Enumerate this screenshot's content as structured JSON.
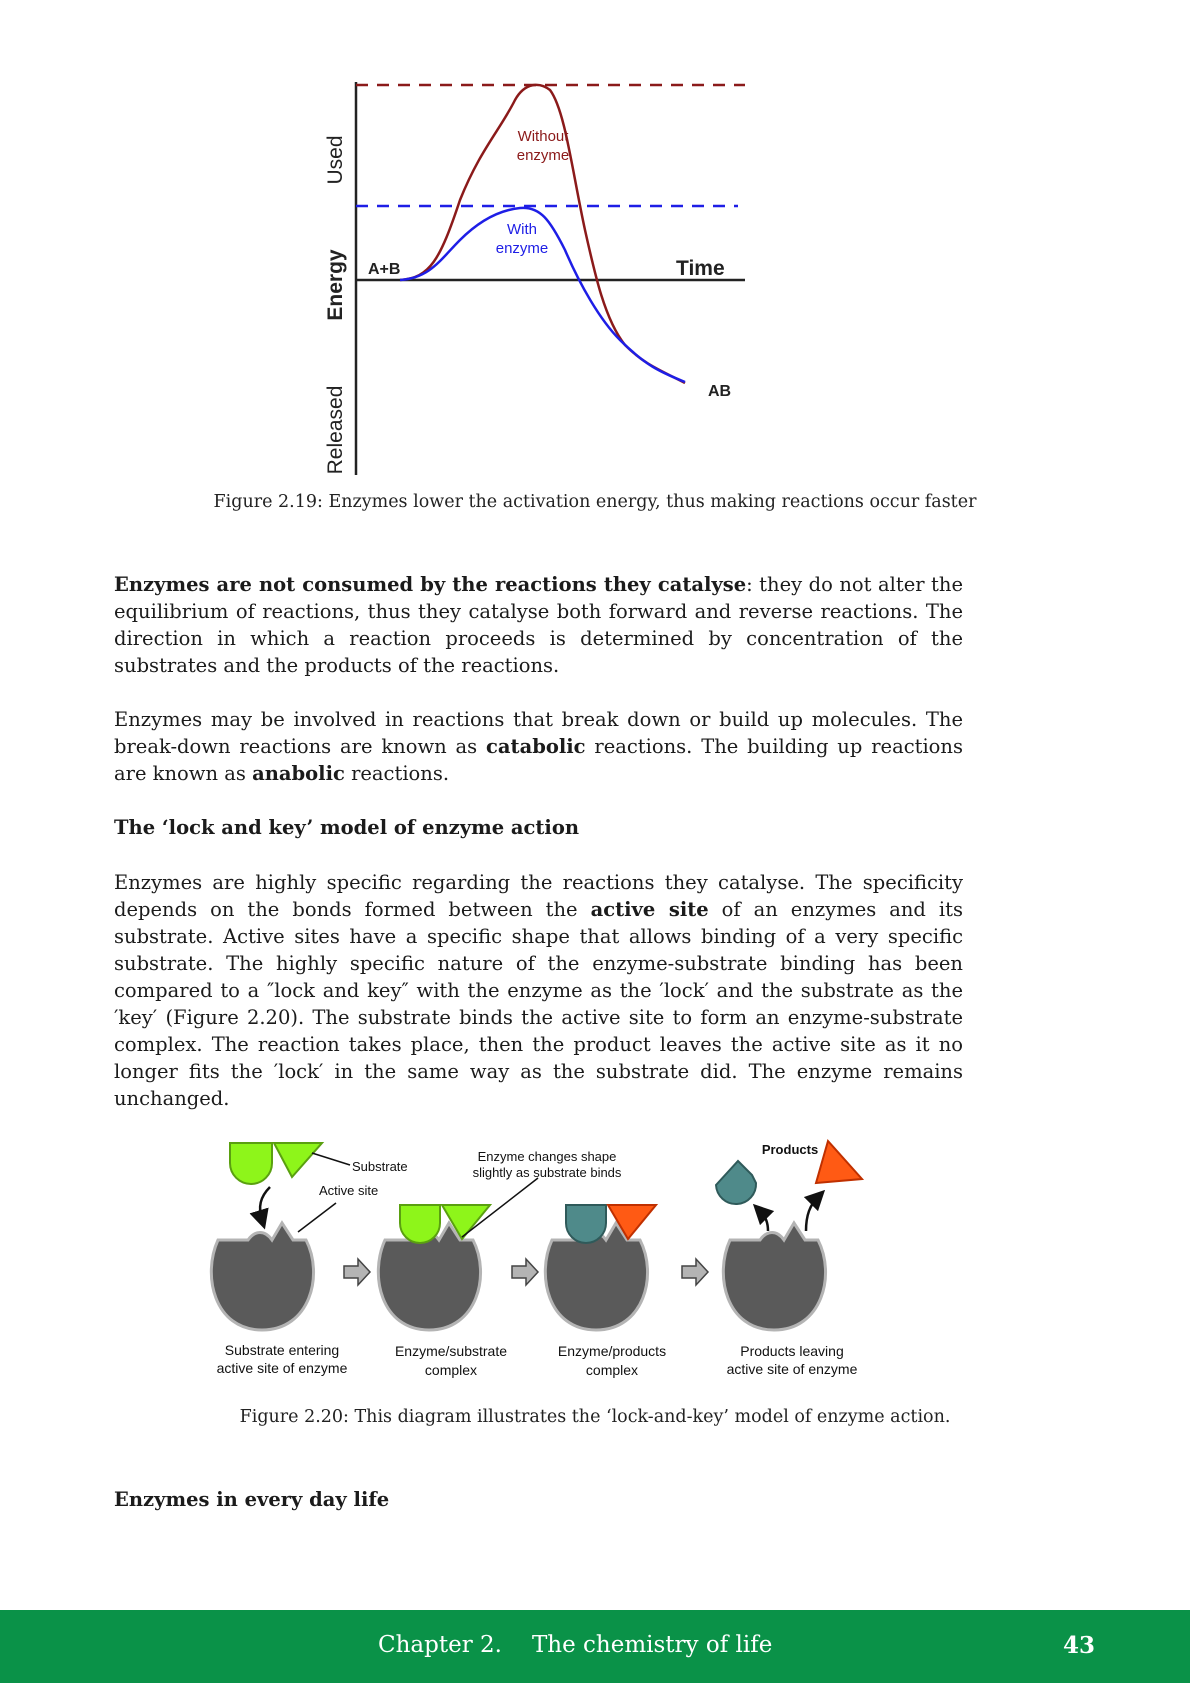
{
  "figure_2_19": {
    "labels": {
      "y_released": "Released",
      "y_energy": "Energy",
      "y_used": "Used",
      "reactants": "A+B",
      "time": "Time",
      "product": "AB",
      "without_1": "Without",
      "without_2": "enzyme",
      "with_1": "With",
      "with_2": "enzyme"
    },
    "colors": {
      "without_enzyme": "#8b1a1a",
      "with_enzyme": "#1e1ee6"
    },
    "caption": "Figure 2.19: Enzymes lower the activation energy, thus making reactions occur faster"
  },
  "paragraphs": {
    "p1_bold": "Enzymes are not consumed by the reactions they catalyse",
    "p1_rest": ": they do not alter the equilibrium of reactions, thus they catalyse both forward and reverse reactions. The direction in which a reaction proceeds is determined by concentration of the substrates and the products of the reactions.",
    "p2_a": "Enzymes may be involved in reactions that break down or build up molecules. The break-down reactions are known as ",
    "p2_b_bold": "catabolic",
    "p2_c": " reactions. The building up reactions are known as ",
    "p2_d_bold": "anabolic",
    "p2_e": " reactions.",
    "heading_lock_key": "The ‘lock and key’ model of enzyme action",
    "p3_a": "Enzymes are highly specific regarding the reactions they catalyse. The specificity depends on the bonds formed between the ",
    "p3_b_bold": "active site",
    "p3_c": " of an enzymes and its substrate. Active sites have a specific shape that allows binding of a very specific substrate. The highly specific nature of the enzyme-substrate binding has been compared to a ″lock and key″ with the enzyme as the ′lock′ and the substrate as the ′key′ (Figure 2.20). The substrate binds the active site to form an enzyme-substrate complex. The reaction takes place, then the product leaves the active site as it no longer fits the ′lock′ in the same way as the substrate did. The enzyme remains unchanged.",
    "heading_everyday": "Enzymes in every day life"
  },
  "figure_2_20": {
    "labels": {
      "substrate": "Substrate",
      "active_site": "Active site",
      "change_1": "Enzyme changes shape",
      "change_2": "slightly as substrate binds",
      "products": "Products",
      "step1_a": "Substrate entering",
      "step1_b": "active site of enzyme",
      "step2_a": "Enzyme/substrate",
      "step2_b": "complex",
      "step3_a": "Enzyme/products",
      "step3_b": "complex",
      "step4_a": "Products leaving",
      "step4_b": "active site of enzyme"
    },
    "colors": {
      "enzyme": "#5a5a5a",
      "substrate": "#8ef51a",
      "product_teal": "#4f8a8a",
      "product_red": "#ff5a14"
    },
    "caption": "Figure 2.20: This diagram illustrates the ‘lock-and-key’ model of enzyme action."
  },
  "footer": {
    "chapter": "Chapter 2.",
    "title": "The chemistry of life",
    "page_number": "43"
  }
}
